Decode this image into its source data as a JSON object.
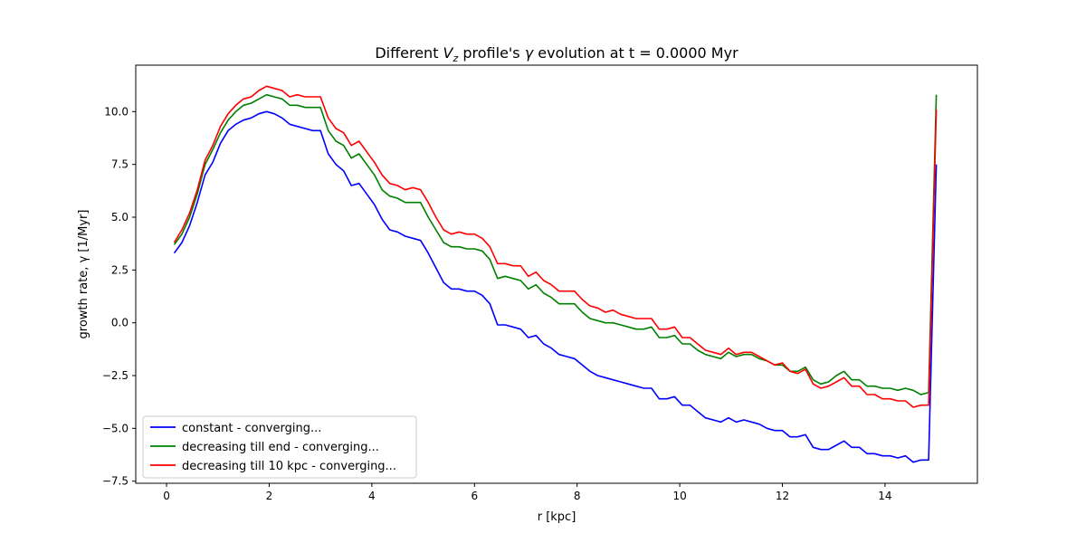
{
  "chart_data": {
    "type": "line",
    "title_parts": [
      "Different ",
      "V",
      "z",
      " profile's ",
      "γ",
      " evolution at t = 0.0000 Myr"
    ],
    "xlabel": "r [kpc]",
    "ylabel": "growth rate, γ [1/Myr]",
    "xlim": [
      -0.6,
      15.8
    ],
    "ylim": [
      -7.6,
      12.2
    ],
    "xticks": [
      0,
      2,
      4,
      6,
      8,
      10,
      12,
      14
    ],
    "xtick_labels": [
      "0",
      "2",
      "4",
      "6",
      "8",
      "10",
      "12",
      "14"
    ],
    "yticks": [
      -7.5,
      -5.0,
      -2.5,
      0.0,
      2.5,
      5.0,
      7.5,
      10.0
    ],
    "ytick_labels": [
      "−7.5",
      "−5.0",
      "−2.5",
      "0.0",
      "2.5",
      "5.0",
      "7.5",
      "10.0"
    ],
    "grid": false,
    "legend_position": "lower-left",
    "series": [
      {
        "name": "constant - converging...",
        "color": "#0000ff",
        "x": [
          0.15,
          0.3,
          0.45,
          0.6,
          0.75,
          0.9,
          1.05,
          1.2,
          1.35,
          1.5,
          1.65,
          1.8,
          1.95,
          2.1,
          2.25,
          2.4,
          2.55,
          2.7,
          2.85,
          3.0,
          3.15,
          3.3,
          3.45,
          3.6,
          3.75,
          3.9,
          4.05,
          4.2,
          4.35,
          4.5,
          4.65,
          4.8,
          4.95,
          5.1,
          5.25,
          5.4,
          5.55,
          5.7,
          5.85,
          6.0,
          6.15,
          6.3,
          6.45,
          6.6,
          6.75,
          6.9,
          7.05,
          7.2,
          7.35,
          7.5,
          7.65,
          7.8,
          7.95,
          8.1,
          8.25,
          8.4,
          8.55,
          8.7,
          8.85,
          9.0,
          9.15,
          9.3,
          9.45,
          9.6,
          9.75,
          9.9,
          10.05,
          10.2,
          10.35,
          10.5,
          10.65,
          10.8,
          10.95,
          11.1,
          11.25,
          11.4,
          11.55,
          11.7,
          11.85,
          12.0,
          12.15,
          12.3,
          12.45,
          12.6,
          12.75,
          12.9,
          13.05,
          13.2,
          13.35,
          13.5,
          13.65,
          13.8,
          13.95,
          14.1,
          14.25,
          14.4,
          14.55,
          14.7,
          14.85,
          15.0
        ],
        "y": [
          3.3,
          3.8,
          4.6,
          5.7,
          7.0,
          7.6,
          8.5,
          9.1,
          9.4,
          9.6,
          9.7,
          9.9,
          10.0,
          9.9,
          9.7,
          9.4,
          9.3,
          9.2,
          9.1,
          9.1,
          8.0,
          7.5,
          7.2,
          6.5,
          6.6,
          6.1,
          5.6,
          4.9,
          4.4,
          4.3,
          4.1,
          4.0,
          3.9,
          3.3,
          2.6,
          1.9,
          1.6,
          1.6,
          1.5,
          1.5,
          1.3,
          0.9,
          -0.1,
          -0.1,
          -0.2,
          -0.3,
          -0.7,
          -0.6,
          -1.0,
          -1.2,
          -1.5,
          -1.6,
          -1.7,
          -2.0,
          -2.3,
          -2.5,
          -2.6,
          -2.7,
          -2.8,
          -2.9,
          -3.0,
          -3.1,
          -3.1,
          -3.6,
          -3.6,
          -3.5,
          -3.9,
          -3.9,
          -4.2,
          -4.5,
          -4.6,
          -4.7,
          -4.5,
          -4.7,
          -4.6,
          -4.7,
          -4.8,
          -5.0,
          -5.1,
          -5.1,
          -5.4,
          -5.4,
          -5.3,
          -5.9,
          -6.0,
          -6.0,
          -5.8,
          -5.6,
          -5.9,
          -5.9,
          -6.2,
          -6.2,
          -6.3,
          -6.3,
          -6.4,
          -6.3,
          -6.6,
          -6.5,
          -6.5,
          7.5
        ]
      },
      {
        "name": "decreasing till end - converging...",
        "color": "#008000",
        "x": [
          0.15,
          0.3,
          0.45,
          0.6,
          0.75,
          0.9,
          1.05,
          1.2,
          1.35,
          1.5,
          1.65,
          1.8,
          1.95,
          2.1,
          2.25,
          2.4,
          2.55,
          2.7,
          2.85,
          3.0,
          3.15,
          3.3,
          3.45,
          3.6,
          3.75,
          3.9,
          4.05,
          4.2,
          4.35,
          4.5,
          4.65,
          4.8,
          4.95,
          5.1,
          5.25,
          5.4,
          5.55,
          5.7,
          5.85,
          6.0,
          6.15,
          6.3,
          6.45,
          6.6,
          6.75,
          6.9,
          7.05,
          7.2,
          7.35,
          7.5,
          7.65,
          7.8,
          7.95,
          8.1,
          8.25,
          8.4,
          8.55,
          8.7,
          8.85,
          9.0,
          9.15,
          9.3,
          9.45,
          9.6,
          9.75,
          9.9,
          10.05,
          10.2,
          10.35,
          10.5,
          10.65,
          10.8,
          10.95,
          11.1,
          11.25,
          11.4,
          11.55,
          11.7,
          11.85,
          12.0,
          12.15,
          12.3,
          12.45,
          12.6,
          12.75,
          12.9,
          13.05,
          13.2,
          13.35,
          13.5,
          13.65,
          13.8,
          13.95,
          14.1,
          14.25,
          14.4,
          14.55,
          14.7,
          14.85,
          15.0
        ],
        "y": [
          3.7,
          4.2,
          5.0,
          6.1,
          7.5,
          8.2,
          9.0,
          9.6,
          10.0,
          10.3,
          10.4,
          10.6,
          10.8,
          10.7,
          10.6,
          10.3,
          10.3,
          10.2,
          10.2,
          10.2,
          9.1,
          8.6,
          8.4,
          7.8,
          8.0,
          7.5,
          7.0,
          6.3,
          6.0,
          5.9,
          5.7,
          5.7,
          5.7,
          5.0,
          4.4,
          3.8,
          3.6,
          3.6,
          3.5,
          3.5,
          3.4,
          3.0,
          2.1,
          2.2,
          2.1,
          2.0,
          1.6,
          1.8,
          1.4,
          1.2,
          0.9,
          0.9,
          0.9,
          0.5,
          0.2,
          0.1,
          0.0,
          0.0,
          -0.1,
          -0.2,
          -0.3,
          -0.3,
          -0.2,
          -0.7,
          -0.7,
          -0.6,
          -1.0,
          -1.0,
          -1.3,
          -1.5,
          -1.6,
          -1.7,
          -1.4,
          -1.6,
          -1.5,
          -1.5,
          -1.7,
          -1.8,
          -2.0,
          -2.0,
          -2.3,
          -2.3,
          -2.1,
          -2.7,
          -2.9,
          -2.8,
          -2.5,
          -2.3,
          -2.7,
          -2.7,
          -3.0,
          -3.0,
          -3.1,
          -3.1,
          -3.2,
          -3.1,
          -3.2,
          -3.4,
          -3.3,
          10.8
        ]
      },
      {
        "name": "decreasing till 10 kpc - converging...",
        "color": "#ff0000",
        "x": [
          0.15,
          0.3,
          0.45,
          0.6,
          0.75,
          0.9,
          1.05,
          1.2,
          1.35,
          1.5,
          1.65,
          1.8,
          1.95,
          2.1,
          2.25,
          2.4,
          2.55,
          2.7,
          2.85,
          3.0,
          3.15,
          3.3,
          3.45,
          3.6,
          3.75,
          3.9,
          4.05,
          4.2,
          4.35,
          4.5,
          4.65,
          4.8,
          4.95,
          5.1,
          5.25,
          5.4,
          5.55,
          5.7,
          5.85,
          6.0,
          6.15,
          6.3,
          6.45,
          6.6,
          6.75,
          6.9,
          7.05,
          7.2,
          7.35,
          7.5,
          7.65,
          7.8,
          7.95,
          8.1,
          8.25,
          8.4,
          8.55,
          8.7,
          8.85,
          9.0,
          9.15,
          9.3,
          9.45,
          9.6,
          9.75,
          9.9,
          10.05,
          10.2,
          10.35,
          10.5,
          10.65,
          10.8,
          10.95,
          11.1,
          11.25,
          11.4,
          11.55,
          11.7,
          11.85,
          12.0,
          12.15,
          12.3,
          12.45,
          12.6,
          12.75,
          12.9,
          13.05,
          13.2,
          13.35,
          13.5,
          13.65,
          13.8,
          13.95,
          14.1,
          14.25,
          14.4,
          14.55,
          14.7,
          14.85,
          15.0
        ],
        "y": [
          3.8,
          4.4,
          5.2,
          6.3,
          7.7,
          8.4,
          9.3,
          9.9,
          10.3,
          10.6,
          10.7,
          11.0,
          11.2,
          11.1,
          11.0,
          10.7,
          10.8,
          10.7,
          10.7,
          10.7,
          9.7,
          9.2,
          9.0,
          8.4,
          8.6,
          8.1,
          7.6,
          7.0,
          6.6,
          6.5,
          6.3,
          6.4,
          6.3,
          5.7,
          5.0,
          4.4,
          4.2,
          4.3,
          4.2,
          4.2,
          4.0,
          3.6,
          2.8,
          2.8,
          2.7,
          2.7,
          2.2,
          2.4,
          2.0,
          1.8,
          1.5,
          1.5,
          1.5,
          1.1,
          0.8,
          0.7,
          0.5,
          0.6,
          0.4,
          0.3,
          0.2,
          0.2,
          0.2,
          -0.3,
          -0.3,
          -0.2,
          -0.7,
          -0.7,
          -1.0,
          -1.3,
          -1.4,
          -1.5,
          -1.2,
          -1.5,
          -1.4,
          -1.4,
          -1.6,
          -1.8,
          -2.0,
          -1.9,
          -2.3,
          -2.4,
          -2.2,
          -2.9,
          -3.1,
          -3.0,
          -2.8,
          -2.6,
          -3.0,
          -3.0,
          -3.4,
          -3.4,
          -3.6,
          -3.6,
          -3.7,
          -3.7,
          -4.0,
          -3.9,
          -3.9,
          10.1
        ]
      }
    ]
  }
}
